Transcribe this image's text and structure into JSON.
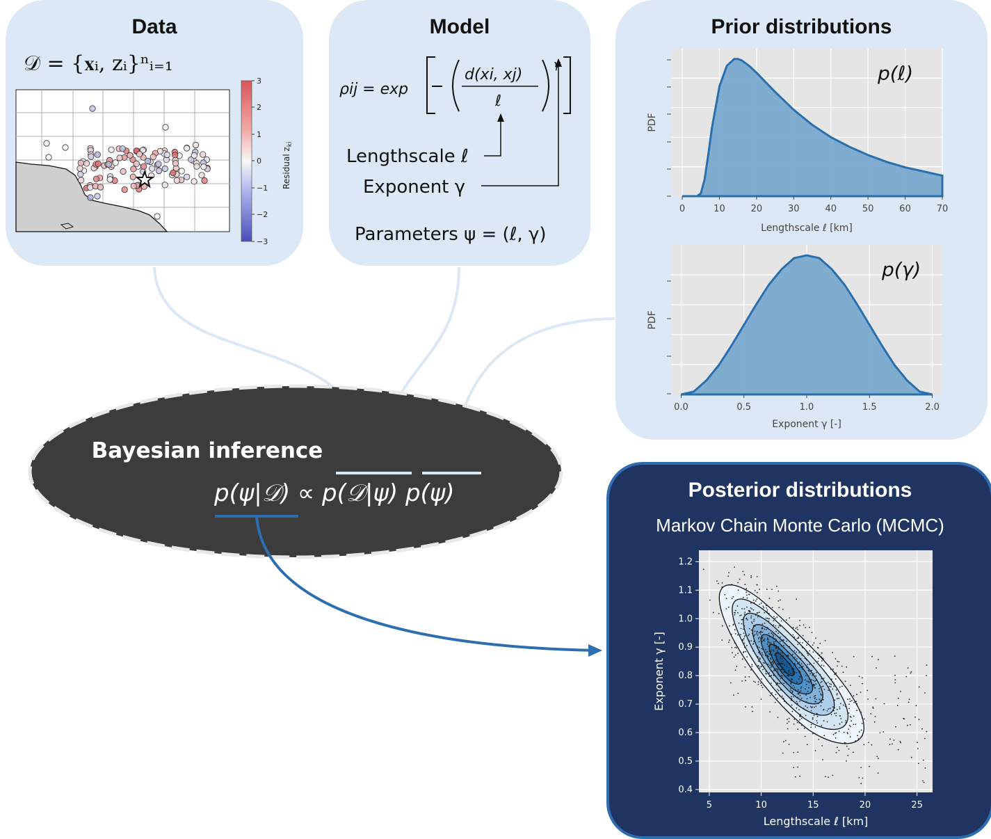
{
  "data_panel": {
    "title": "Data",
    "equation": "𝒟 = {𝐱ᵢ, zᵢ}ⁿᵢ₌₁",
    "colorbar_ticks": [
      "3",
      "2",
      "1",
      "0",
      "−1",
      "−2",
      "−3"
    ],
    "colorbar_label": "Residual z",
    "colorbar_label_sub": "ki"
  },
  "model_panel": {
    "title": "Model",
    "equation_lhs": "ρij = exp",
    "equation_frac_num": "d(xi, xj)",
    "equation_frac_den": "ℓ",
    "equation_exp": "γ",
    "lengthscale_label": "Lengthscale ℓ",
    "exponent_label": "Exponent γ",
    "parameters_label": "Parameters ψ = (ℓ, γ)"
  },
  "prior_panel": {
    "title": "Prior distributions",
    "colors": {
      "fill": "#7aa9cf",
      "line": "#2a6fad",
      "plot_bg": "#e5e5e5"
    }
  },
  "bayes": {
    "title": "Bayesian inference",
    "equation": "p(ψ|𝒟) ∝ p(𝒟|ψ) p(ψ)"
  },
  "posterior_panel": {
    "title": "Posterior distributions",
    "subtitle": "Markov Chain Monte Carlo (MCMC)",
    "colors": {
      "bg": "#1f3461",
      "border": "#2e6db0"
    }
  },
  "chart_data": [
    {
      "type": "area",
      "name": "prior-lengthscale",
      "annotation": "p(ℓ)",
      "xlabel": "Lengthscale ℓ [km]",
      "ylabel": "PDF",
      "xlim": [
        -3,
        70
      ],
      "xticks": [
        0,
        10,
        20,
        30,
        40,
        50,
        60,
        70
      ],
      "grid": true,
      "x": [
        0,
        4,
        5,
        6,
        7,
        8,
        10,
        12,
        14,
        15,
        16,
        18,
        20,
        25,
        30,
        35,
        40,
        45,
        50,
        55,
        60,
        65,
        70
      ],
      "y": [
        0.0,
        0.0,
        0.02,
        0.12,
        0.3,
        0.5,
        0.8,
        0.95,
        1.0,
        1.0,
        0.99,
        0.95,
        0.9,
        0.76,
        0.63,
        0.52,
        0.43,
        0.36,
        0.3,
        0.25,
        0.21,
        0.18,
        0.15
      ]
    },
    {
      "type": "area",
      "name": "prior-exponent",
      "annotation": "p(γ)",
      "xlabel": "Exponent γ [-]",
      "ylabel": "PDF",
      "xlim": [
        -0.08,
        2.08
      ],
      "xticks": [
        0.0,
        0.5,
        1.0,
        1.5,
        2.0
      ],
      "xticklabels": [
        "0.0",
        "0.5",
        "1.0",
        "1.5",
        "2.0"
      ],
      "grid": true,
      "x": [
        0.0,
        0.1,
        0.2,
        0.3,
        0.4,
        0.5,
        0.6,
        0.7,
        0.8,
        0.9,
        1.0,
        1.1,
        1.2,
        1.3,
        1.4,
        1.5,
        1.6,
        1.7,
        1.8,
        1.9,
        2.0
      ],
      "y": [
        0.0,
        0.02,
        0.1,
        0.21,
        0.35,
        0.5,
        0.65,
        0.79,
        0.9,
        0.98,
        1.0,
        0.98,
        0.9,
        0.79,
        0.65,
        0.5,
        0.35,
        0.21,
        0.1,
        0.02,
        0.0
      ]
    },
    {
      "type": "scatter",
      "name": "posterior-samples",
      "xlabel": "Lengthscale ℓ [km]",
      "ylabel": "Exponent γ [-]",
      "xlim": [
        4,
        26.5
      ],
      "ylim": [
        0.39,
        1.24
      ],
      "xticks": [
        5,
        10,
        15,
        20,
        25
      ],
      "yticks": [
        0.4,
        0.5,
        0.6,
        0.7,
        0.8,
        0.9,
        1.0,
        1.1,
        1.2
      ],
      "yticklabels": [
        "0.4",
        "0.5",
        "0.6",
        "0.7",
        "0.8",
        "0.9",
        "1.0",
        "1.1",
        "1.2"
      ],
      "mode": {
        "x": 11.0,
        "y": 0.89
      },
      "grid": true
    }
  ]
}
